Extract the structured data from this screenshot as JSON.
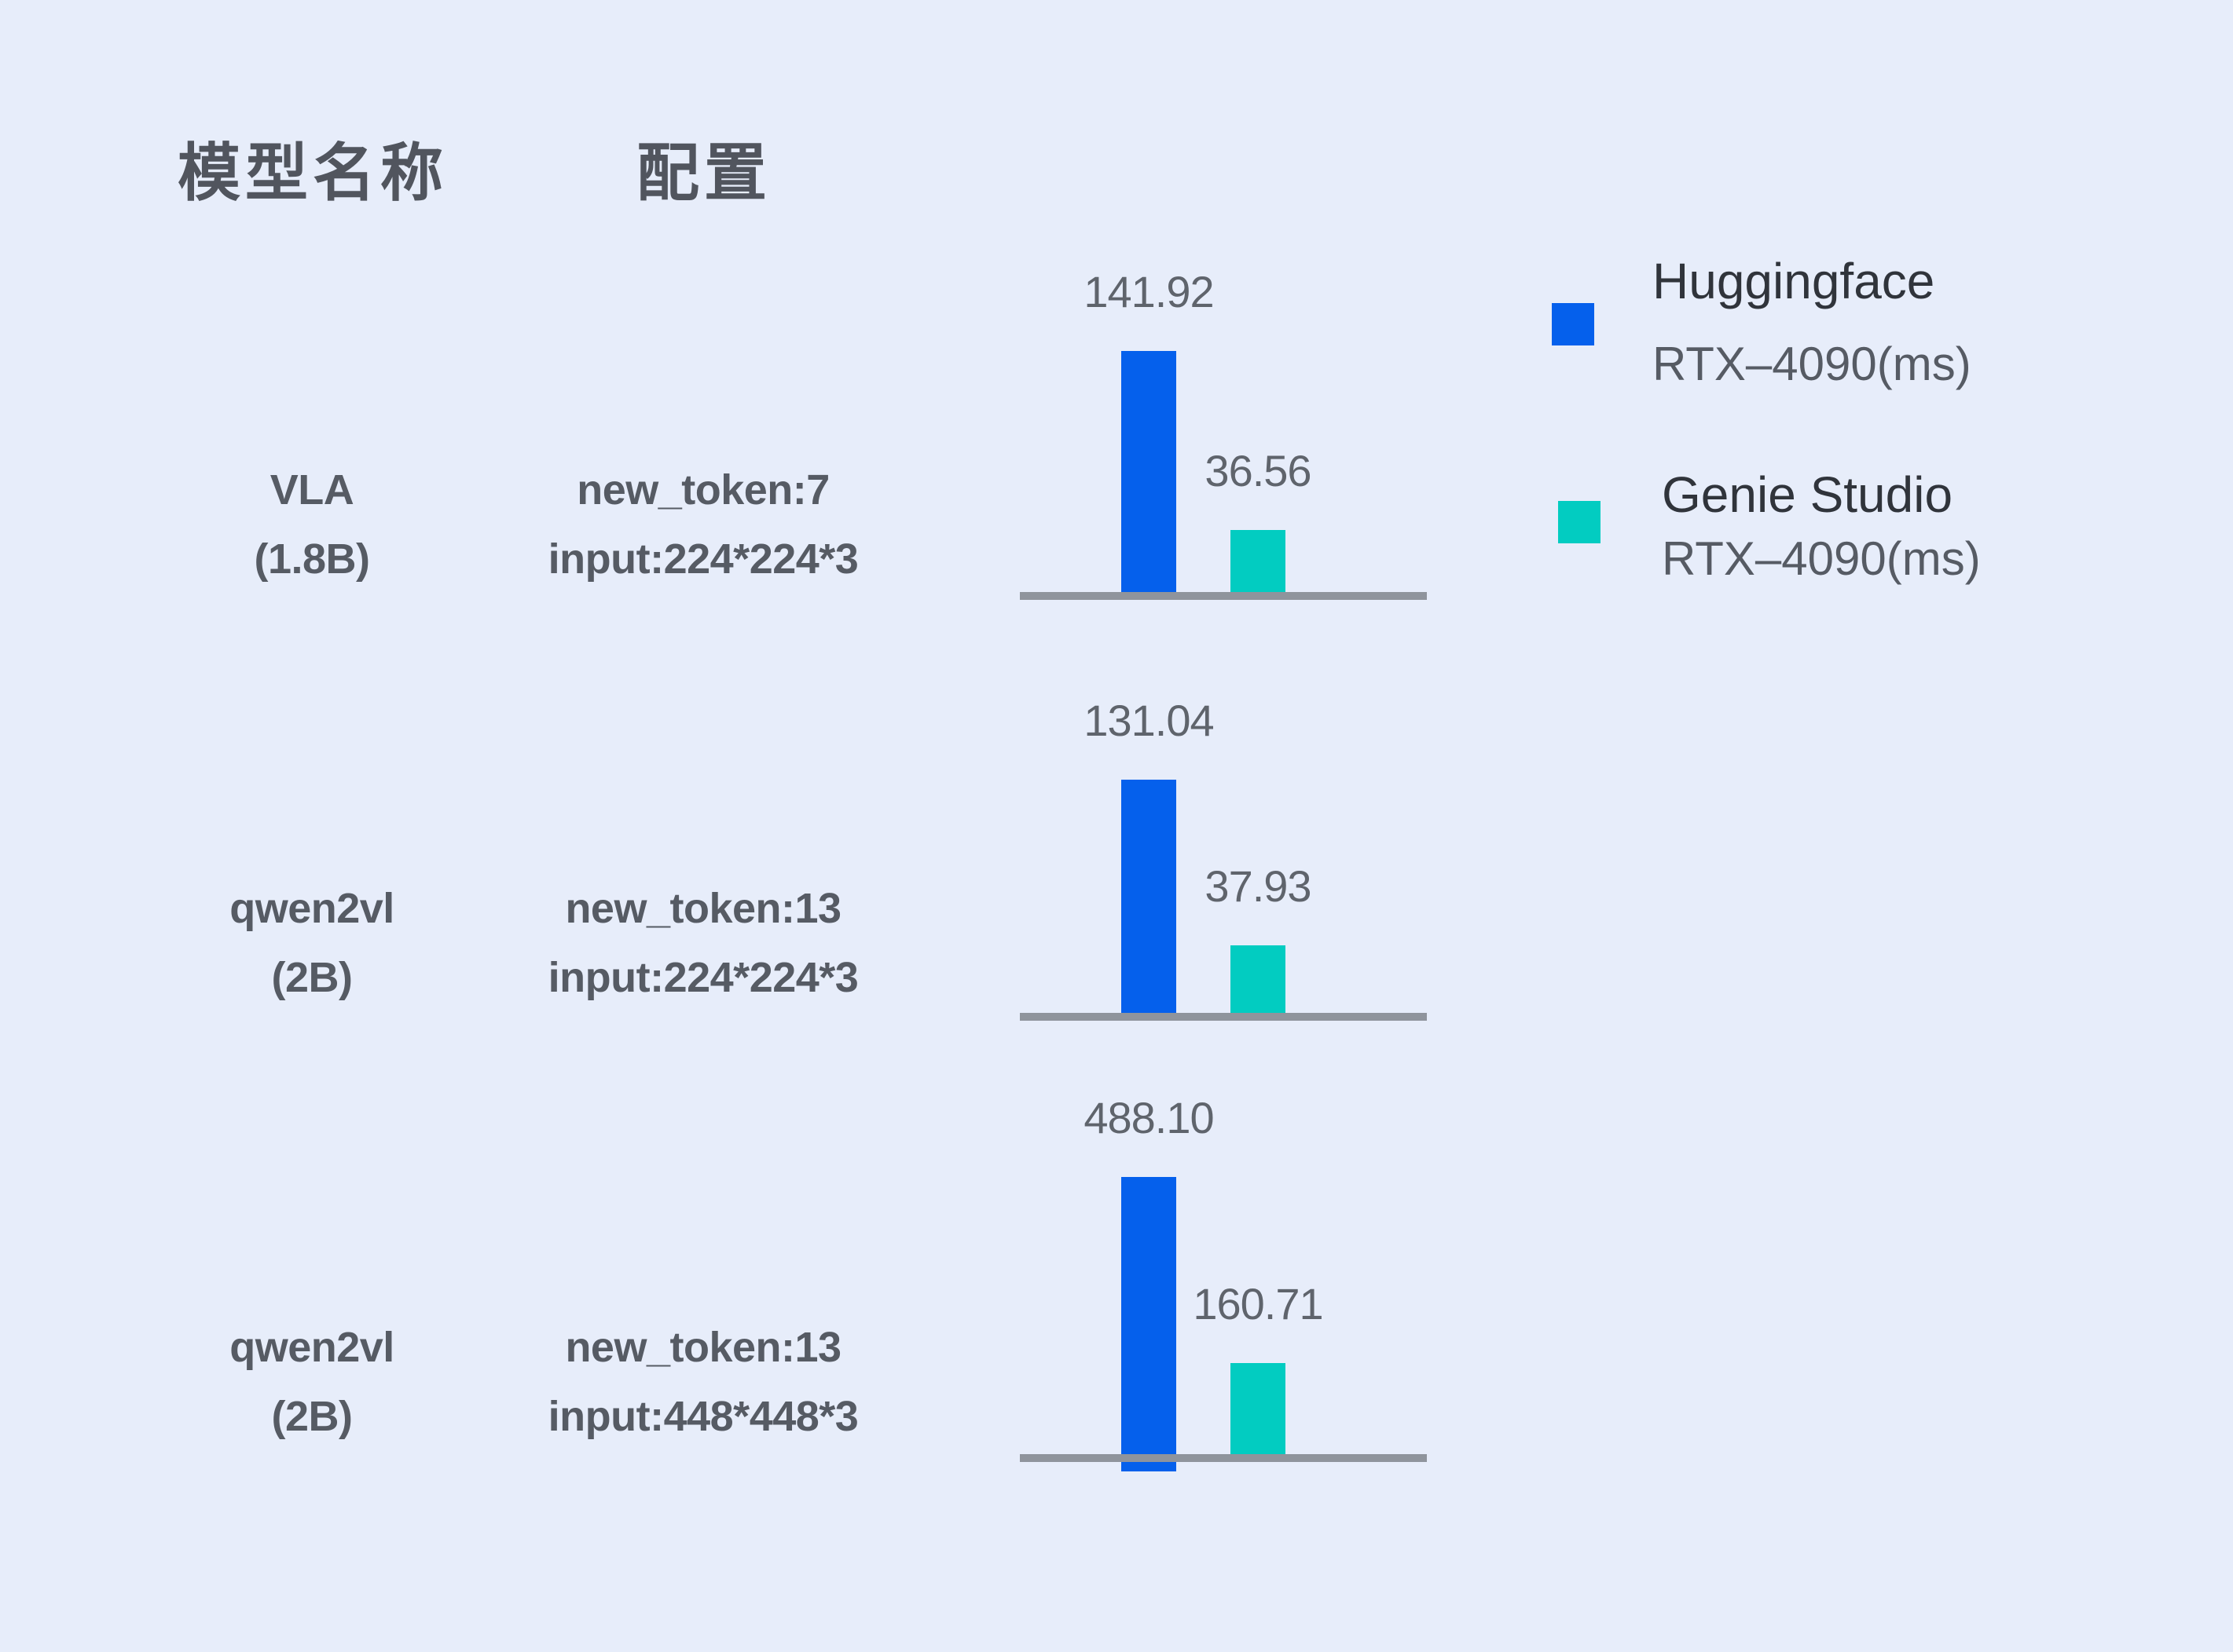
{
  "colors": {
    "background": "#E7EDFA",
    "huggingface_blue": "#0560EC",
    "genie_studio_teal": "#02CCC1",
    "axis_gray": "#8F949C"
  },
  "header": {
    "model_column": "模型名称",
    "config_column": "配置"
  },
  "legend": {
    "huggingface": {
      "name": "Huggingface",
      "device": "RTX–4090(ms)"
    },
    "genie_studio": {
      "name": "Genie Studio",
      "device": "RTX–4090(ms)"
    }
  },
  "chart_data": {
    "type": "bar",
    "unit": "ms",
    "grid": false,
    "legend_position": "top-right",
    "value_labels": "above bars",
    "series": [
      {
        "name": "Huggingface RTX–4090(ms)",
        "color": "#0560EC",
        "values": [
          141.92,
          131.04,
          488.1
        ]
      },
      {
        "name": "Genie Studio RTX–4090(ms)",
        "color": "#02CCC1",
        "values": [
          36.56,
          37.93,
          160.71
        ]
      }
    ],
    "rows": [
      {
        "model_name": "VLA",
        "model_size": "(1.8B)",
        "config_line1": "new_token:7",
        "config_line2": "input:224*224*3",
        "huggingface_ms": "141.92",
        "genie_studio_ms": "36.56"
      },
      {
        "model_name": "qwen2vl",
        "model_size": "(2B)",
        "config_line1": "new_token:13",
        "config_line2": "input:224*224*3",
        "huggingface_ms": "131.04",
        "genie_studio_ms": "37.93"
      },
      {
        "model_name": "qwen2vl",
        "model_size": "(2B)",
        "config_line1": "new_token:13",
        "config_line2": "input:448*448*3",
        "huggingface_ms": "488.10",
        "genie_studio_ms": "160.71"
      }
    ]
  }
}
